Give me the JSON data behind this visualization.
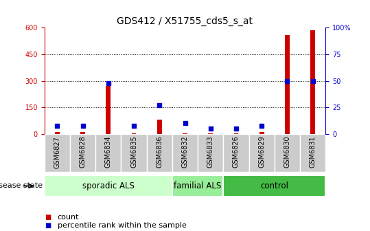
{
  "title": "GDS412 / X51755_cds5_s_at",
  "samples": [
    "GSM6827",
    "GSM6828",
    "GSM6834",
    "GSM6835",
    "GSM6836",
    "GSM6832",
    "GSM6833",
    "GSM6826",
    "GSM6829",
    "GSM6830",
    "GSM6831"
  ],
  "counts": [
    10,
    10,
    270,
    5,
    80,
    5,
    5,
    5,
    10,
    560,
    585
  ],
  "percentiles": [
    8,
    8,
    48,
    8,
    27,
    10,
    5,
    5,
    8,
    50,
    50
  ],
  "bar_color": "#cc0000",
  "dot_color": "#0000cc",
  "groups": [
    {
      "label": "sporadic ALS",
      "start": 0,
      "end": 5,
      "color": "#ccffcc"
    },
    {
      "label": "familial ALS",
      "start": 5,
      "end": 7,
      "color": "#99ee99"
    },
    {
      "label": "control",
      "start": 7,
      "end": 11,
      "color": "#44bb44"
    }
  ],
  "ylim_left": [
    0,
    600
  ],
  "ylim_right": [
    0,
    100
  ],
  "yticks_left": [
    0,
    150,
    300,
    450,
    600
  ],
  "yticks_right": [
    0,
    25,
    50,
    75,
    100
  ],
  "ytick_labels_right": [
    "0",
    "25",
    "50",
    "75",
    "100%"
  ],
  "bar_width": 0.18,
  "dot_size": 18,
  "title_fontsize": 10,
  "tick_fontsize": 7,
  "label_fontsize": 8,
  "group_label_fontsize": 8.5,
  "disease_state_label": "disease state",
  "legend_items": [
    {
      "label": "count",
      "color": "#cc0000"
    },
    {
      "label": "percentile rank within the sample",
      "color": "#0000cc"
    }
  ],
  "background_color": "#ffffff",
  "grid_color": "#000000",
  "cell_bg": "#cccccc",
  "cell_border": "#aaaaaa"
}
